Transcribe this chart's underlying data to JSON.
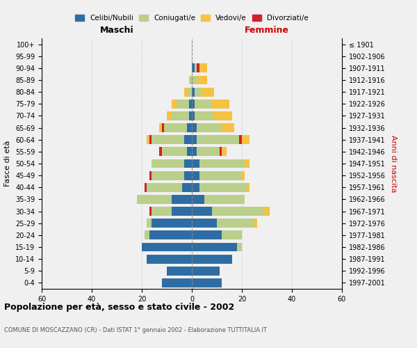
{
  "age_groups": [
    "0-4",
    "5-9",
    "10-14",
    "15-19",
    "20-24",
    "25-29",
    "30-34",
    "35-39",
    "40-44",
    "45-49",
    "50-54",
    "55-59",
    "60-64",
    "65-69",
    "70-74",
    "75-79",
    "80-84",
    "85-89",
    "90-94",
    "95-99",
    "100+"
  ],
  "birth_years": [
    "1997-2001",
    "1992-1996",
    "1987-1991",
    "1982-1986",
    "1977-1981",
    "1972-1976",
    "1967-1971",
    "1962-1966",
    "1957-1961",
    "1952-1956",
    "1947-1951",
    "1942-1946",
    "1937-1941",
    "1932-1936",
    "1927-1931",
    "1922-1926",
    "1917-1921",
    "1912-1916",
    "1907-1911",
    "1902-1906",
    "≤ 1901"
  ],
  "maschi": {
    "celibi": [
      12,
      10,
      18,
      20,
      17,
      16,
      8,
      8,
      4,
      3,
      3,
      2,
      3,
      2,
      1,
      1,
      0,
      0,
      0,
      0,
      0
    ],
    "coniugati": [
      0,
      0,
      0,
      0,
      2,
      2,
      8,
      14,
      14,
      13,
      13,
      10,
      13,
      9,
      7,
      5,
      2,
      1,
      0,
      0,
      0
    ],
    "vedovi": [
      0,
      0,
      0,
      0,
      0,
      0,
      0,
      0,
      0,
      0,
      0,
      0,
      1,
      1,
      2,
      2,
      1,
      0,
      0,
      0,
      0
    ],
    "divorziati": [
      0,
      0,
      0,
      0,
      0,
      0,
      1,
      0,
      1,
      1,
      0,
      1,
      1,
      1,
      0,
      0,
      0,
      0,
      0,
      0,
      0
    ]
  },
  "femmine": {
    "nubili": [
      12,
      11,
      16,
      18,
      12,
      10,
      8,
      5,
      3,
      3,
      3,
      2,
      2,
      2,
      1,
      1,
      1,
      0,
      1,
      0,
      0
    ],
    "coniugate": [
      0,
      0,
      0,
      2,
      8,
      15,
      21,
      16,
      19,
      17,
      18,
      9,
      17,
      10,
      8,
      7,
      3,
      2,
      1,
      0,
      0
    ],
    "vedove": [
      0,
      0,
      0,
      0,
      0,
      1,
      2,
      0,
      1,
      1,
      2,
      2,
      3,
      5,
      7,
      7,
      5,
      4,
      3,
      0,
      0
    ],
    "divorziate": [
      0,
      0,
      0,
      0,
      0,
      0,
      0,
      0,
      0,
      0,
      0,
      1,
      1,
      0,
      0,
      0,
      0,
      0,
      1,
      0,
      0
    ]
  },
  "colors": {
    "celibi": "#2E6DA4",
    "coniugati": "#BACF8A",
    "vedovi": "#F5C242",
    "divorziati": "#D0212A"
  },
  "title": "Popolazione per età, sesso e stato civile - 2002",
  "subtitle": "COMUNE DI MOSCAZZANO (CR) - Dati ISTAT 1° gennaio 2002 - Elaborazione TUTTITALIA.IT",
  "xlabel_left": "Maschi",
  "xlabel_right": "Femmine",
  "ylabel_left": "Fasce di età",
  "ylabel_right": "Anni di nascita",
  "xlim": 60,
  "background_color": "#f0f0f0",
  "grid_color": "#cccccc"
}
